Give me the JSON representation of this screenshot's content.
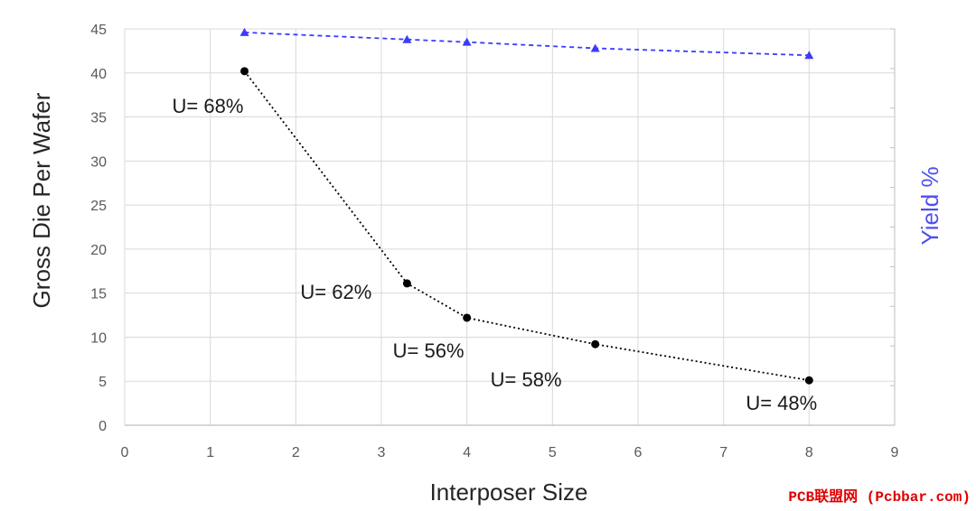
{
  "chart_data": {
    "type": "line",
    "xlabel": "Interposer Size",
    "ylabel": "Gross Die Per Wafer",
    "y2label": "Yield %",
    "xlim": [
      0,
      9
    ],
    "ylim": [
      0,
      45
    ],
    "xticks": [
      "0",
      "1",
      "2",
      "3",
      "4",
      "5",
      "6",
      "7",
      "8",
      "9"
    ],
    "yticks": [
      "0",
      "5",
      "10",
      "15",
      "20",
      "25",
      "30",
      "35",
      "40",
      "45"
    ],
    "grid": true,
    "series": [
      {
        "axis": "left",
        "color": "#000000",
        "marker": "circle",
        "line_style": "dotted",
        "x": [
          1.4,
          3.3,
          4.0,
          5.5,
          8.0
        ],
        "y": [
          40.2,
          16.1,
          12.2,
          9.2,
          5.1
        ]
      },
      {
        "axis": "right",
        "color": "#3b3bff",
        "marker": "triangle",
        "line_style": "dashed",
        "x": [
          1.4,
          3.3,
          4.0,
          5.5,
          8.0
        ],
        "y": [
          44.6,
          43.8,
          43.5,
          42.8,
          42.0
        ]
      }
    ],
    "annotations": [
      {
        "text": "U= 68%",
        "x": 1.4,
        "y": 40.2
      },
      {
        "text": "U= 62%",
        "x": 3.3,
        "y": 16.1
      },
      {
        "text": "U= 56%",
        "x": 4.0,
        "y": 12.2
      },
      {
        "text": "U= 58%",
        "x": 5.5,
        "y": 9.2
      },
      {
        "text": "U= 48%",
        "x": 8.0,
        "y": 5.1
      }
    ]
  },
  "watermark": "PCB联盟网 (Pcbbar.com)"
}
